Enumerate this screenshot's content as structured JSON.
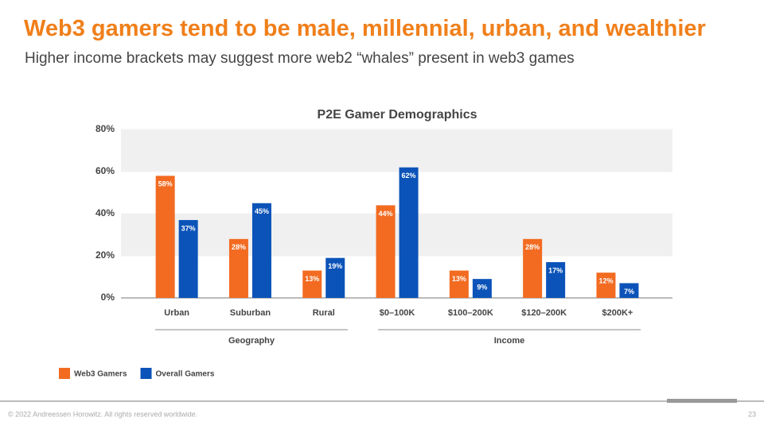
{
  "title": "Web3 gamers tend to be male, millennial, urban, and wealthier",
  "subtitle": "Higher income brackets may suggest more web2 “whales” present in web3 games",
  "footer": "© 2022 Andreessen Horowitz. All rights reserved worldwide.",
  "page_number": "23",
  "chart_data": {
    "type": "bar",
    "title": "P2E Gamer Demographics",
    "categories": [
      "Urban",
      "Suburban",
      "Rural",
      "$0–100K",
      "$100–200K",
      "$120–200K",
      "$200K+"
    ],
    "groups": [
      "Geography",
      "Income"
    ],
    "series": [
      {
        "name": "Web3 Gamers",
        "color": "#f26b21",
        "values": [
          58,
          28,
          13,
          44,
          13,
          28,
          12
        ],
        "value_labels": [
          "58%",
          "28%",
          "13%",
          "44%",
          "13%",
          "28%",
          "12%"
        ]
      },
      {
        "name": "Overall Gamers",
        "color": "#0b53b8",
        "values": [
          37,
          45,
          19,
          62,
          9,
          17,
          7
        ],
        "value_labels": [
          "37%",
          "45%",
          "19%",
          "62%",
          "9%",
          "17%",
          "7%"
        ]
      }
    ],
    "ylim": [
      0,
      80
    ],
    "yticks": [
      {
        "value": 0,
        "label": "0%"
      },
      {
        "value": 20,
        "label": "20%"
      },
      {
        "value": 40,
        "label": "40%"
      },
      {
        "value": 60,
        "label": "60%"
      },
      {
        "value": 80,
        "label": "80%"
      }
    ],
    "grid": true
  }
}
